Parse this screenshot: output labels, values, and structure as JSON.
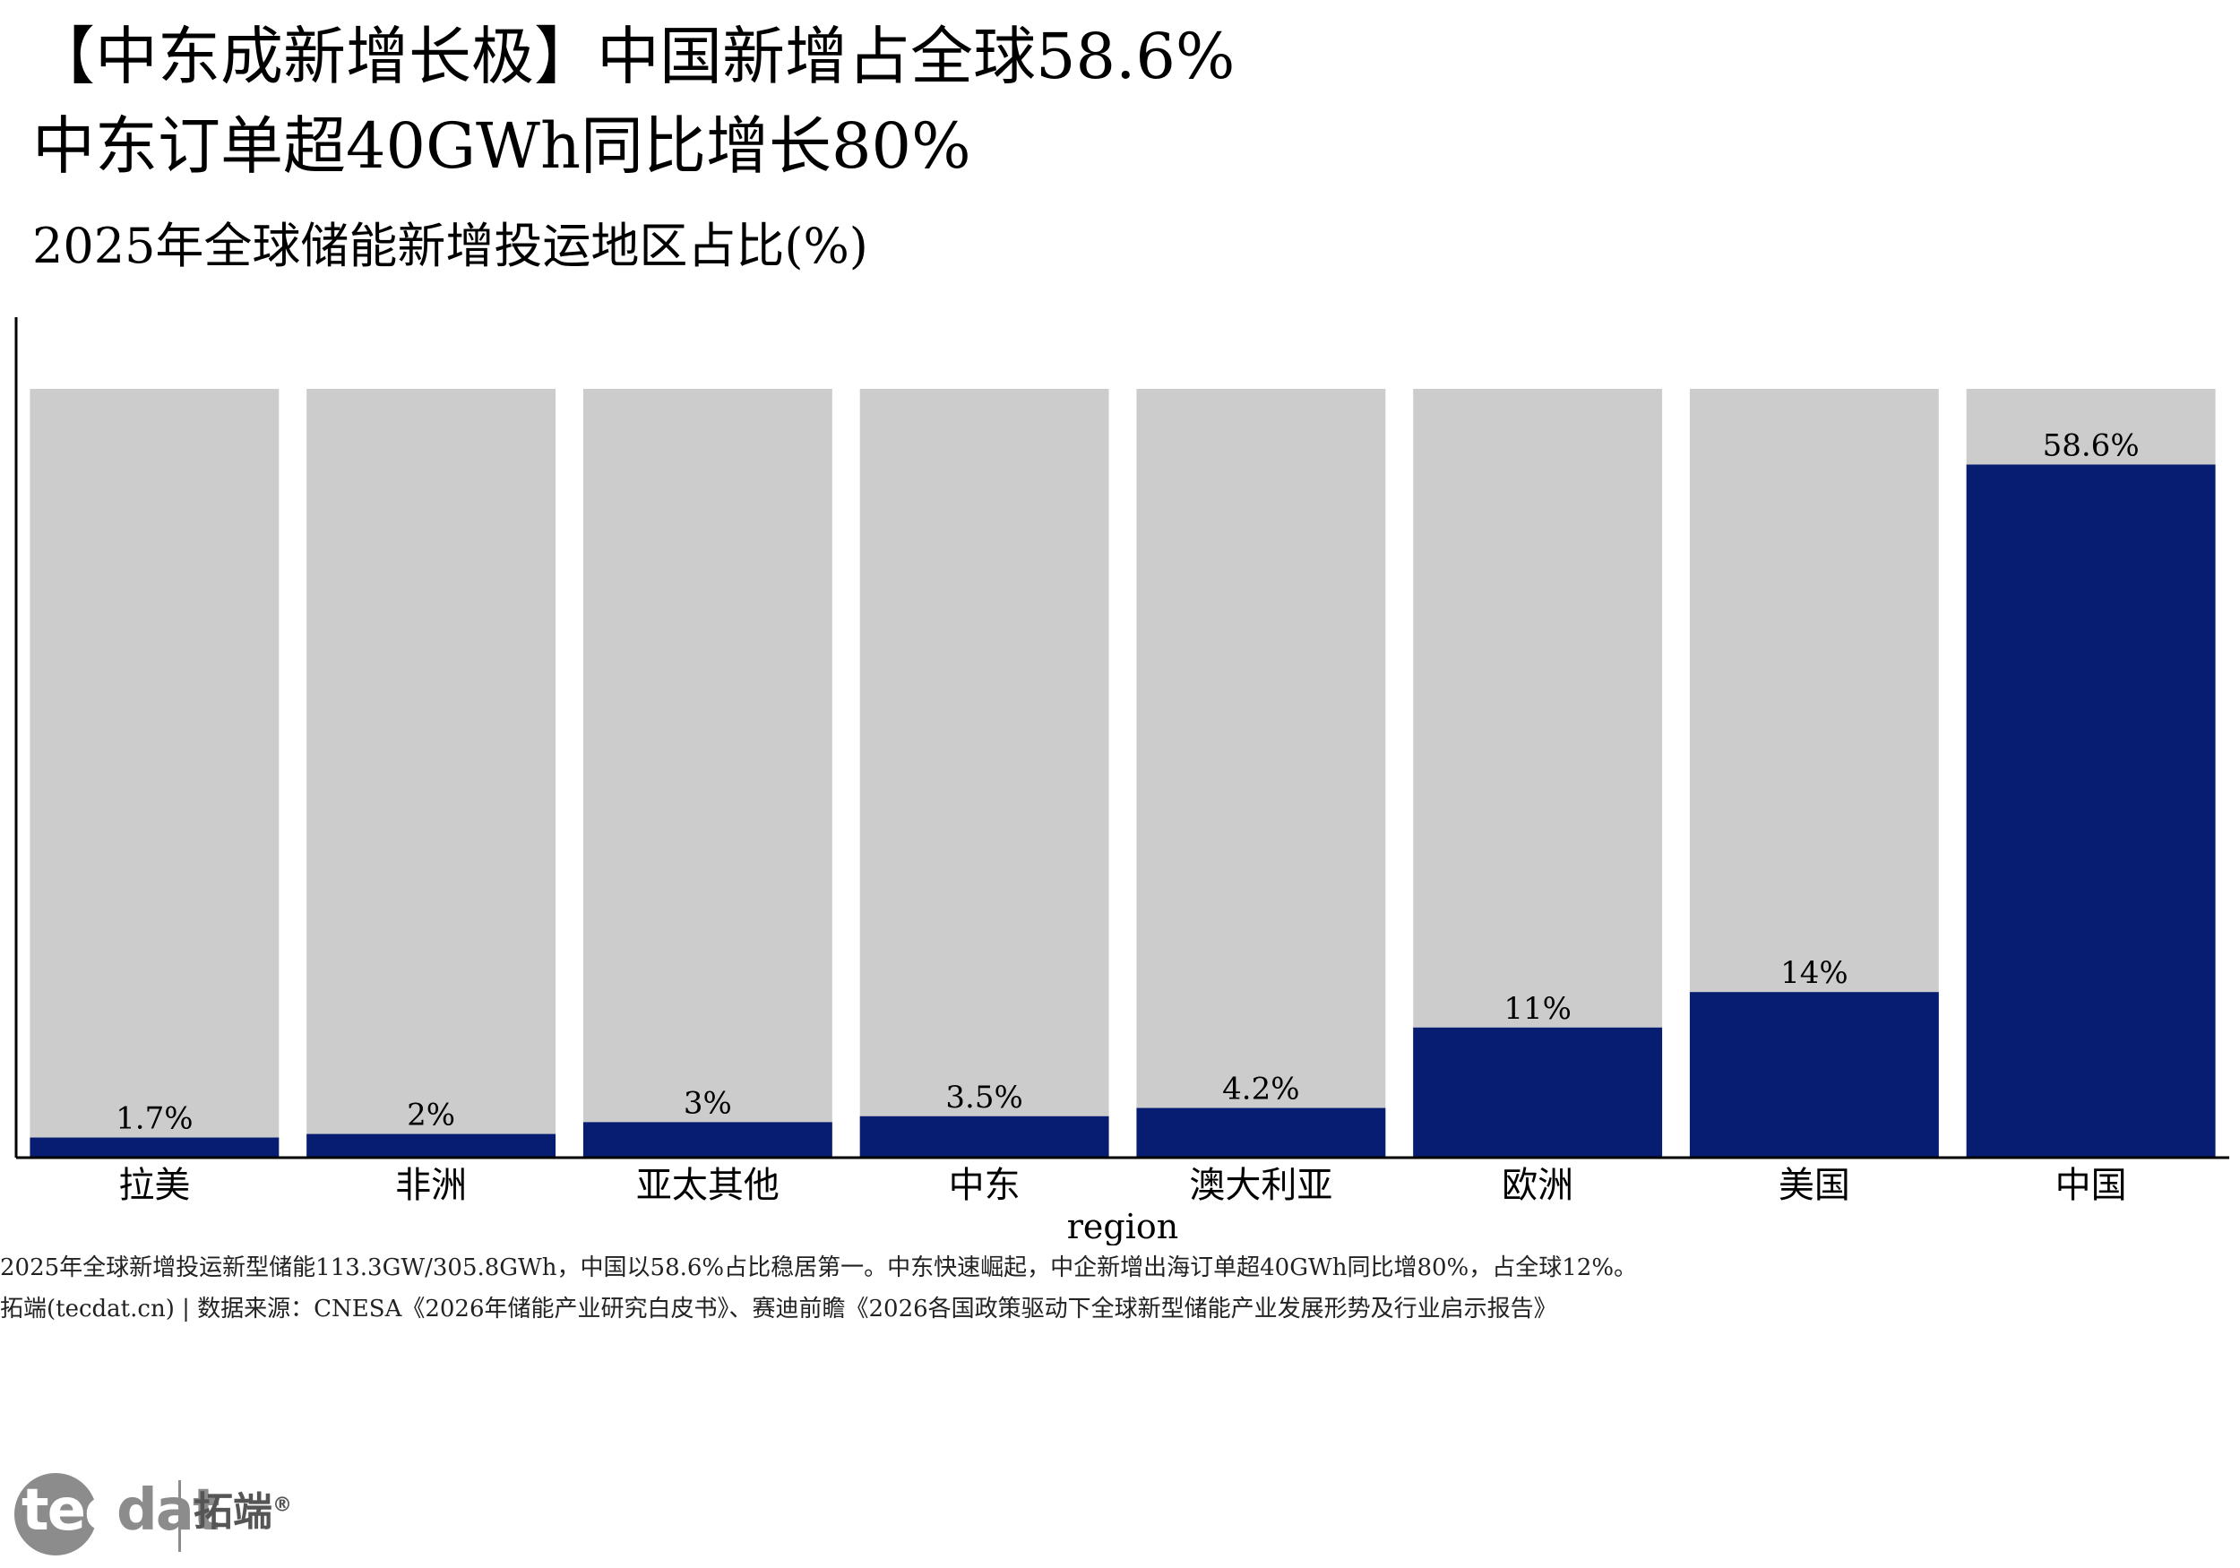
{
  "header": {
    "title_line1": "【中东成新增长极】中国新增占全球58.6%",
    "title_line2": "中东订单超40GWh同比增长80%",
    "subtitle": "2025年全球储能新增投运地区占比(%)"
  },
  "footer": {
    "caption": "2025年全球新增投运新型储能113.3GW/305.8GWh，中国以58.6%占比稳居第一。中东快速崛起，中企新增出海订单超40GWh同比增80%，占全球12%。",
    "source": "拓端(tecdat.cn) | 数据来源：CNESA《2026年储能产业研究白皮书》、赛迪前瞻《2026各国政策驱动下全球新型储能产业发展形势及行业启示报告》"
  },
  "logo": {
    "word_first": "tec",
    "word_rest": "dat",
    "cn": "拓端",
    "mark": "®"
  },
  "colors": {
    "bar": "#071d72",
    "background_bar": "#cccccc",
    "axis": "#000000"
  },
  "chart_data": {
    "type": "bar",
    "title": "2025年全球储能新增投运地区占比(%)",
    "xlabel": "region",
    "ylabel": "",
    "categories": [
      "拉美",
      "非洲",
      "亚太其他",
      "中东",
      "澳大利亚",
      "欧洲",
      "美国",
      "中国"
    ],
    "values": [
      1.7,
      2,
      3,
      3.5,
      4.2,
      11,
      14,
      58.6
    ],
    "data_labels": [
      "1.7%",
      "2%",
      "3%",
      "3.5%",
      "4.2%",
      "11%",
      "14%",
      "58.6%"
    ],
    "background_value": 65,
    "ylim": [
      0,
      65
    ],
    "grid": false,
    "legend": "none"
  }
}
